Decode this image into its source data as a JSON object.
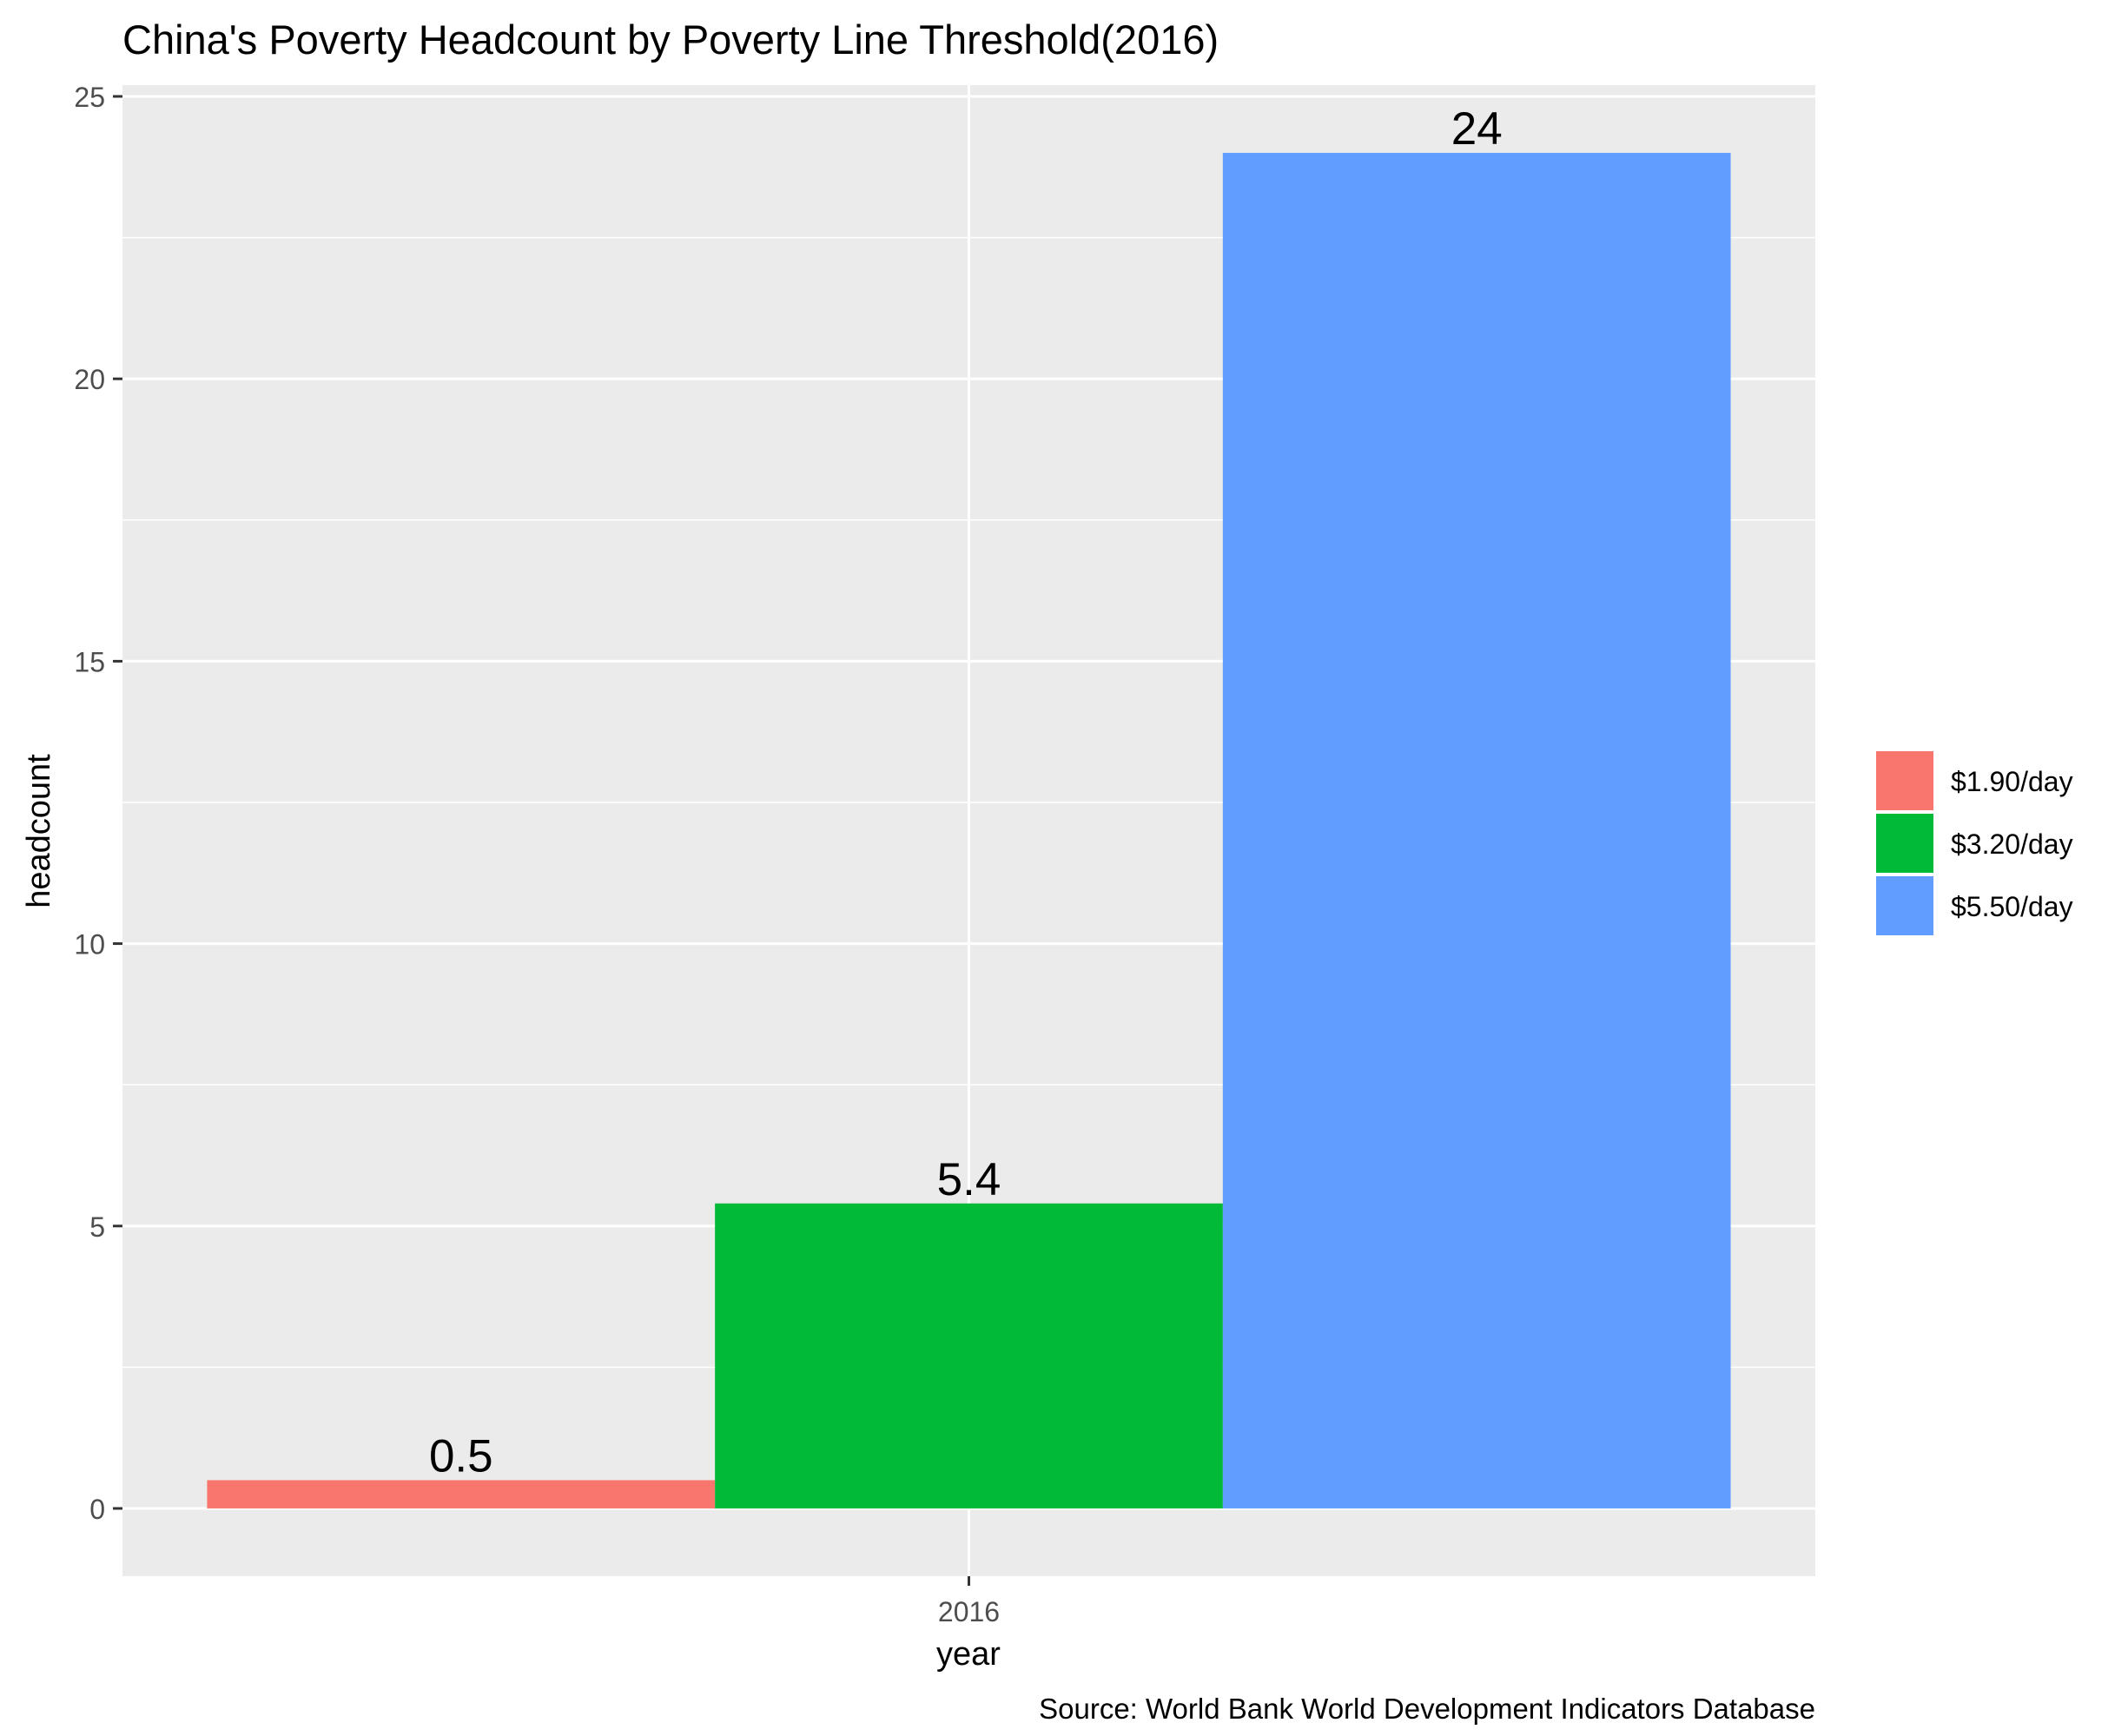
{
  "chart_data": {
    "type": "bar",
    "title": "China's Poverty Headcount by Poverty Line Threshold(2016)",
    "xlabel": "year",
    "ylabel": "headcount",
    "caption": "Source: World Bank World Development Indicators Database",
    "categories": [
      "2016"
    ],
    "series": [
      {
        "name": "$1.90/day",
        "color": "#F8766D",
        "values": [
          0.5
        ],
        "label": "0.5"
      },
      {
        "name": "$3.20/day",
        "color": "#00BA38",
        "values": [
          5.4
        ],
        "label": "5.4"
      },
      {
        "name": "$5.50/day",
        "color": "#619CFF",
        "values": [
          24
        ],
        "label": "24"
      }
    ],
    "ylim": [
      -1.2,
      25.2
    ],
    "yticks": [
      0,
      5,
      10,
      15,
      20,
      25
    ],
    "yminor": [
      2.5,
      7.5,
      12.5,
      17.5,
      22.5
    ],
    "grid": true,
    "legend_position": "right",
    "panel_background": "#EBEBEB",
    "grid_color": "#FFFFFF",
    "tick_text_color": "#4D4D4D"
  }
}
